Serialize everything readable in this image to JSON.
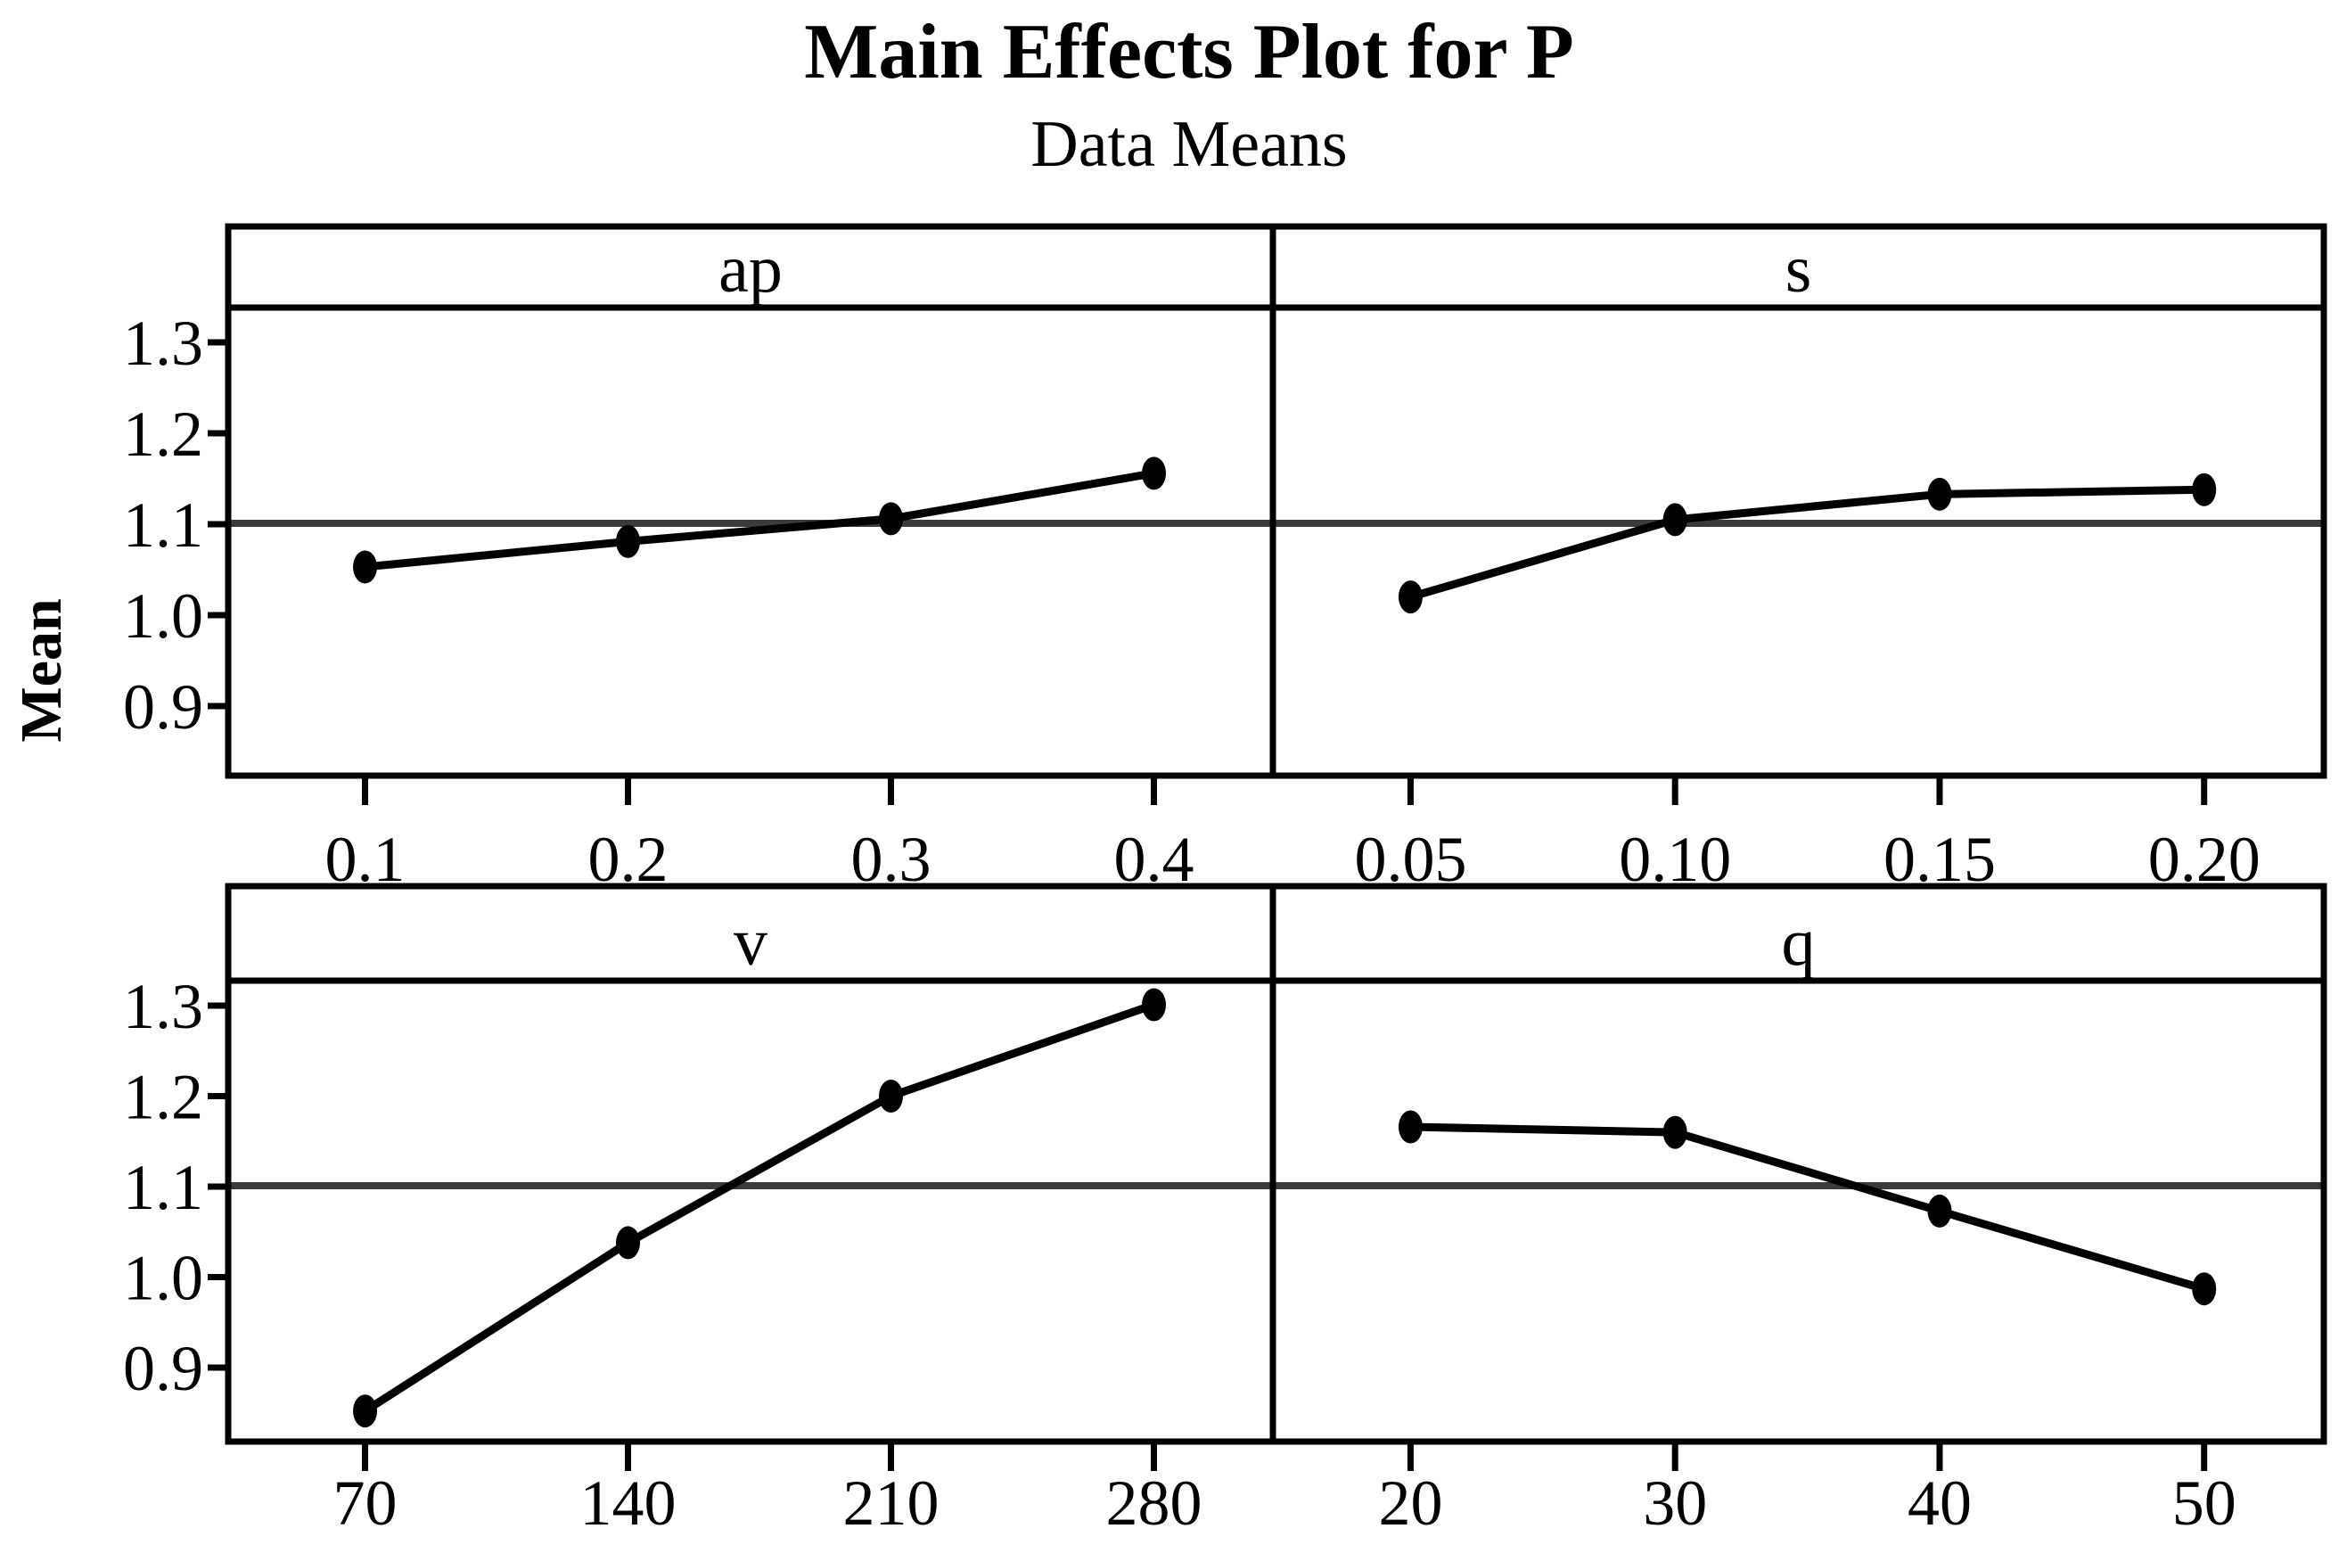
{
  "title": "Main Effects Plot for P",
  "subtitle": "Data Means",
  "y_axis_label": "Mean",
  "colors": {
    "background": "#ffffff",
    "series_line": "#000000",
    "marker": "#000000",
    "reference_line": "#3b3b3b",
    "border": "#000000",
    "text": "#000000"
  },
  "chart_data": {
    "type": "line",
    "title": "Main Effects Plot for P",
    "subtitle": "Data Means",
    "ylabel": "Mean",
    "layout": "2x2 trellis of factor panels, shared y axis, y tick labels on left column only",
    "grid": "off",
    "legend": "none",
    "marker": "filled-circle",
    "reference_line_value": 1.101,
    "reference_line_meaning": "grand mean of P",
    "ylim": [
      0.82,
      1.34
    ],
    "y_ticks": [
      1.3,
      1.2,
      1.1,
      1.0,
      0.9
    ],
    "y_tick_labels": [
      "1.3",
      "1.2",
      "1.1",
      "1.0",
      "0.9"
    ],
    "panels": [
      {
        "factor": "ap",
        "row": 0,
        "col": 0,
        "categories": [
          "0.1",
          "0.2",
          "0.3",
          "0.4"
        ],
        "x": [
          0.1,
          0.2,
          0.3,
          0.4
        ],
        "values": [
          1.053,
          1.081,
          1.106,
          1.156
        ]
      },
      {
        "factor": "s",
        "row": 0,
        "col": 1,
        "categories": [
          "0.05",
          "0.10",
          "0.15",
          "0.20"
        ],
        "x": [
          0.05,
          0.1,
          0.15,
          0.2
        ],
        "values": [
          1.02,
          1.105,
          1.133,
          1.138
        ]
      },
      {
        "factor": "v",
        "row": 1,
        "col": 0,
        "categories": [
          "70",
          "140",
          "210",
          "280"
        ],
        "x": [
          70,
          140,
          210,
          280
        ],
        "values": [
          0.852,
          1.038,
          1.2,
          1.301
        ]
      },
      {
        "factor": "q",
        "row": 1,
        "col": 1,
        "categories": [
          "20",
          "30",
          "40",
          "50"
        ],
        "x": [
          20,
          30,
          40,
          50
        ],
        "values": [
          1.166,
          1.16,
          1.073,
          0.987
        ]
      }
    ]
  }
}
